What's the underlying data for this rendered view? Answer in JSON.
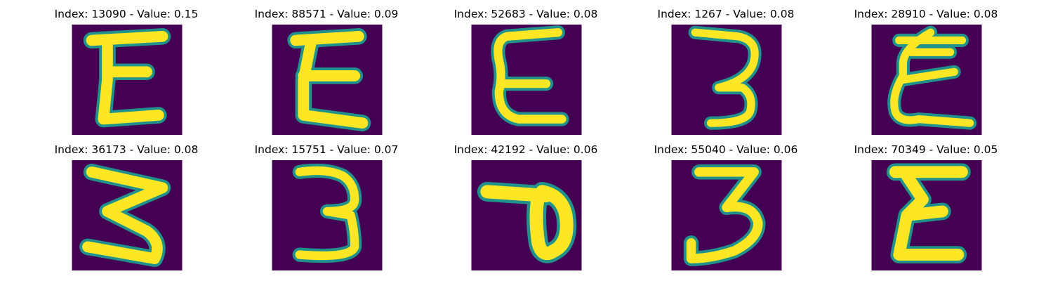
{
  "colors": {
    "background": "#440154",
    "mid": "#21918c",
    "edge": "#2db27d",
    "stroke": "#fde725"
  },
  "panels": [
    {
      "index": "13090",
      "value": "0.15",
      "caption": "Index: 13090 - Value: 0.15",
      "glyph": "E"
    },
    {
      "index": "88571",
      "value": "0.09",
      "caption": "Index: 88571 - Value: 0.09",
      "glyph": "E"
    },
    {
      "index": "52683",
      "value": "0.08",
      "caption": "Index: 52683 - Value: 0.08",
      "glyph": "E"
    },
    {
      "index": "1267",
      "value": "0.08",
      "caption": "Index: 1267 - Value: 0.08",
      "glyph": "3"
    },
    {
      "index": "28910",
      "value": "0.08",
      "caption": "Index: 28910 - Value: 0.08",
      "glyph": "E"
    },
    {
      "index": "36173",
      "value": "0.08",
      "caption": "Index: 36173 - Value: 0.08",
      "glyph": "3"
    },
    {
      "index": "15751",
      "value": "0.07",
      "caption": "Index: 15751 - Value: 0.07",
      "glyph": "3"
    },
    {
      "index": "42192",
      "value": "0.06",
      "caption": "Index: 42192 - Value: 0.06",
      "glyph": "7"
    },
    {
      "index": "55040",
      "value": "0.06",
      "caption": "Index: 55040 - Value: 0.06",
      "glyph": "3"
    },
    {
      "index": "70349",
      "value": "0.05",
      "caption": "Index: 70349 - Value: 0.05",
      "glyph": "E"
    }
  ]
}
